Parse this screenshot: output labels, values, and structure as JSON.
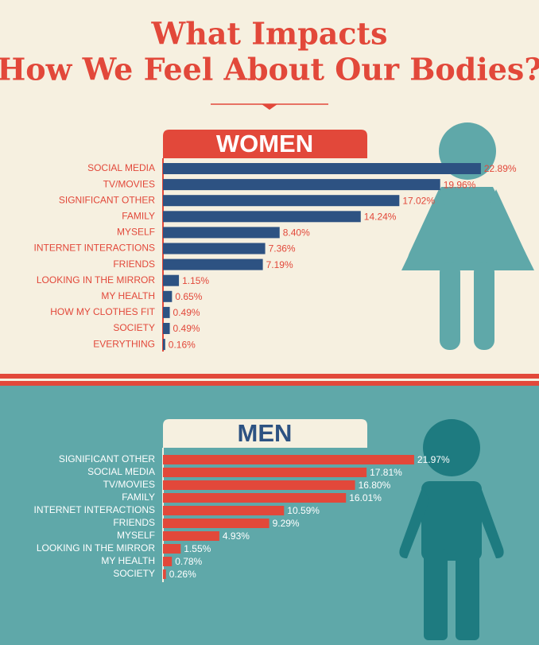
{
  "title": [
    "What Impacts",
    "How We Feel About Our Bodies?"
  ],
  "chart_data": [
    {
      "type": "bar",
      "title": "WOMEN",
      "color": "#2d5282",
      "categories": [
        "SOCIAL MEDIA",
        "TV/MOVIES",
        "SIGNIFICANT OTHER",
        "FAMILY",
        "MYSELF",
        "INTERNET INTERACTIONS",
        "FRIENDS",
        "LOOKING IN THE MIRROR",
        "MY HEALTH",
        "HOW MY CLOTHES FIT",
        "SOCIETY",
        "EVERYTHING"
      ],
      "values": [
        22.89,
        19.96,
        17.02,
        14.24,
        8.4,
        7.36,
        7.19,
        1.15,
        0.65,
        0.49,
        0.49,
        0.16
      ],
      "value_labels": [
        "22.89%",
        "19.96%",
        "17.02%",
        "14.24%",
        "8.40%",
        "7.36%",
        "7.19%",
        "1.15%",
        "0.65%",
        "0.49%",
        "0.49%",
        "0.16%"
      ]
    },
    {
      "type": "bar",
      "title": "MEN",
      "color": "#e2483a",
      "categories": [
        "SIGNIFICANT OTHER",
        "SOCIAL MEDIA",
        "TV/MOVIES",
        "FAMILY",
        "INTERNET INTERACTIONS",
        "FRIENDS",
        "MYSELF",
        "LOOKING IN THE MIRROR",
        "MY HEALTH",
        "SOCIETY"
      ],
      "values": [
        21.97,
        17.81,
        16.8,
        16.01,
        10.59,
        9.29,
        4.93,
        1.55,
        0.78,
        0.26
      ],
      "value_labels": [
        "21.97%",
        "17.81%",
        "16.80%",
        "16.01%",
        "10.59%",
        "9.29%",
        "4.93%",
        "1.55%",
        "0.78%",
        "0.26%"
      ]
    }
  ]
}
